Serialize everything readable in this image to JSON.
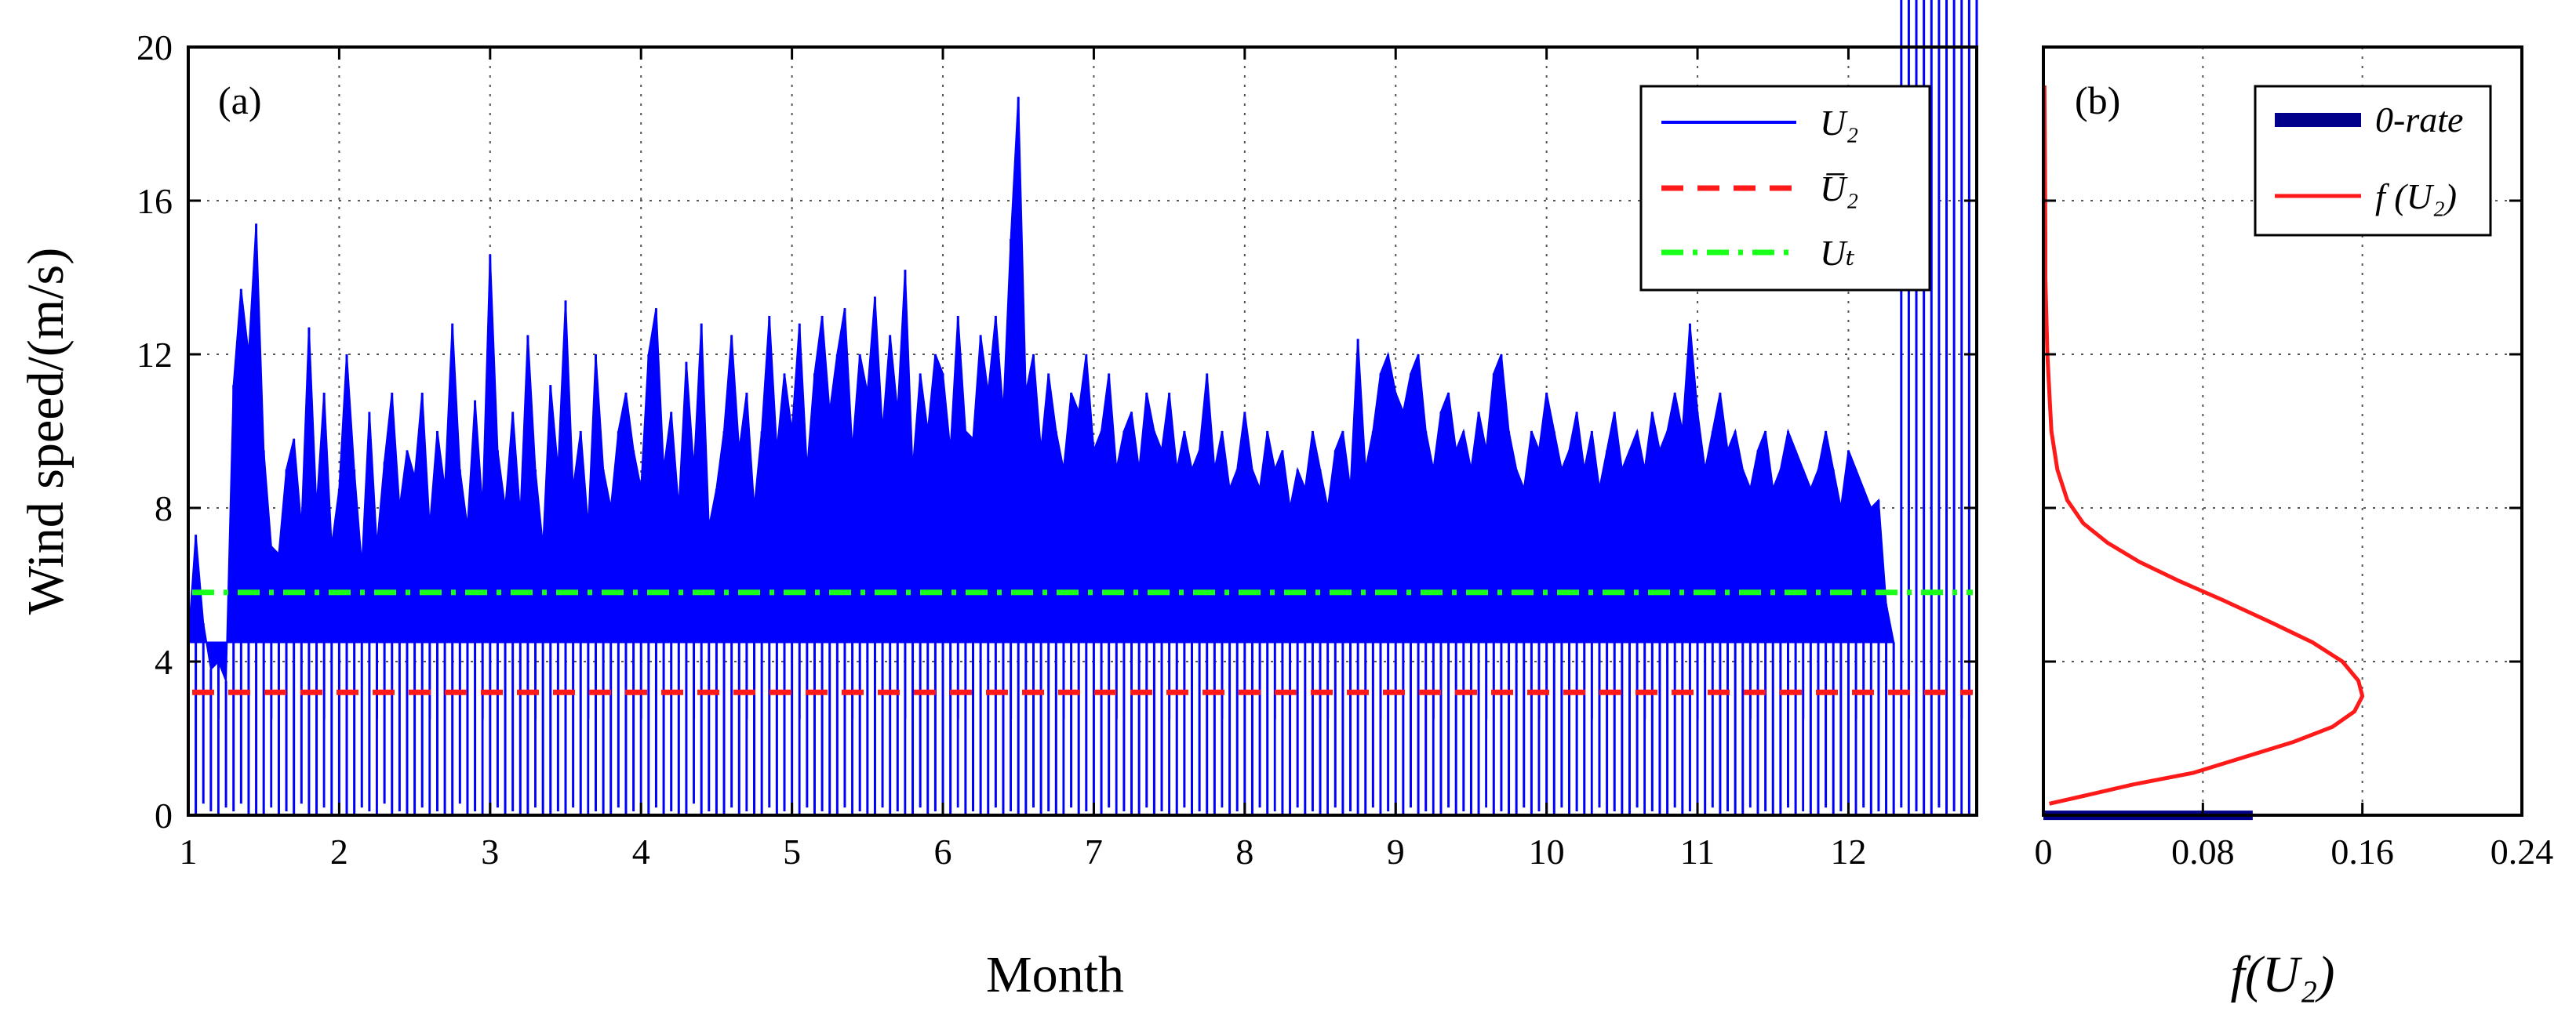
{
  "chart_data": [
    {
      "panel": "(a)",
      "type": "line",
      "xlabel": "Month",
      "ylabel": "Wind speed/(m/s)",
      "xlim": [
        1,
        12.85
      ],
      "ylim": [
        0,
        20
      ],
      "xticks": [
        "1",
        "2",
        "3",
        "4",
        "5",
        "6",
        "7",
        "8",
        "9",
        "10",
        "11",
        "12"
      ],
      "yticks": [
        "0",
        "4",
        "8",
        "12",
        "16",
        "20"
      ],
      "grid": true,
      "legend_position": "top-right",
      "series": [
        {
          "name": "U₂",
          "style": "solid",
          "color": "#0000ff",
          "x": [
            1.0,
            1.05,
            1.1,
            1.15,
            1.2,
            1.25,
            1.3,
            1.35,
            1.4,
            1.45,
            1.5,
            1.55,
            1.6,
            1.65,
            1.7,
            1.75,
            1.8,
            1.85,
            1.9,
            1.95,
            2.0,
            2.05,
            2.1,
            2.15,
            2.2,
            2.25,
            2.3,
            2.35,
            2.4,
            2.45,
            2.5,
            2.55,
            2.6,
            2.65,
            2.7,
            2.75,
            2.8,
            2.85,
            2.9,
            2.95,
            3.0,
            3.05,
            3.1,
            3.15,
            3.2,
            3.25,
            3.3,
            3.35,
            3.4,
            3.45,
            3.5,
            3.55,
            3.6,
            3.65,
            3.7,
            3.75,
            3.8,
            3.85,
            3.9,
            3.95,
            4.0,
            4.05,
            4.1,
            4.15,
            4.2,
            4.25,
            4.3,
            4.35,
            4.4,
            4.45,
            4.5,
            4.55,
            4.6,
            4.65,
            4.7,
            4.75,
            4.8,
            4.85,
            4.9,
            4.95,
            5.0,
            5.05,
            5.1,
            5.15,
            5.2,
            5.25,
            5.3,
            5.35,
            5.4,
            5.45,
            5.5,
            5.55,
            5.6,
            5.65,
            5.7,
            5.75,
            5.8,
            5.85,
            5.9,
            5.95,
            6.0,
            6.05,
            6.1,
            6.15,
            6.2,
            6.25,
            6.3,
            6.35,
            6.4,
            6.45,
            6.5,
            6.55,
            6.6,
            6.65,
            6.7,
            6.75,
            6.8,
            6.85,
            6.9,
            6.95,
            7.0,
            7.05,
            7.1,
            7.15,
            7.2,
            7.25,
            7.3,
            7.35,
            7.4,
            7.45,
            7.5,
            7.55,
            7.6,
            7.65,
            7.7,
            7.75,
            7.8,
            7.85,
            7.9,
            7.95,
            8.0,
            8.05,
            8.1,
            8.15,
            8.2,
            8.25,
            8.3,
            8.35,
            8.4,
            8.45,
            8.5,
            8.55,
            8.6,
            8.65,
            8.7,
            8.75,
            8.8,
            8.85,
            8.9,
            8.95,
            9.0,
            9.05,
            9.1,
            9.15,
            9.2,
            9.25,
            9.3,
            9.35,
            9.4,
            9.45,
            9.5,
            9.55,
            9.6,
            9.65,
            9.7,
            9.75,
            9.8,
            9.85,
            9.9,
            9.95,
            10.0,
            10.05,
            10.1,
            10.15,
            10.2,
            10.25,
            10.3,
            10.35,
            10.4,
            10.45,
            10.5,
            10.55,
            10.6,
            10.65,
            10.7,
            10.75,
            10.8,
            10.85,
            10.9,
            10.95,
            11.0,
            11.05,
            11.1,
            11.15,
            11.2,
            11.25,
            11.3,
            11.35,
            11.4,
            11.45,
            11.5,
            11.55,
            11.6,
            11.65,
            11.7,
            11.75,
            11.8,
            11.85,
            11.9,
            11.95,
            12.0,
            12.05,
            12.1,
            12.15,
            12.2,
            12.25,
            12.3,
            12.35,
            12.4,
            12.45,
            12.5,
            12.55,
            12.6,
            12.65,
            12.7,
            12.75,
            12.8,
            12.85
          ],
          "y_max": [
            4.5,
            7.3,
            5.0,
            3.8,
            4.0,
            3.5,
            11.2,
            13.7,
            12.0,
            15.4,
            9.5,
            7.0,
            6.8,
            9.0,
            9.8,
            7.5,
            12.7,
            8.0,
            11.0,
            7.0,
            8.5,
            12.0,
            9.0,
            6.5,
            10.5,
            7.0,
            9.2,
            11.0,
            8.0,
            9.5,
            8.8,
            11.0,
            7.5,
            10.0,
            8.5,
            12.8,
            9.0,
            7.5,
            10.8,
            8.0,
            14.6,
            9.5,
            8.0,
            10.5,
            7.8,
            12.5,
            9.0,
            7.0,
            11.2,
            9.0,
            13.4,
            8.5,
            10.0,
            7.5,
            12.0,
            9.0,
            8.0,
            10.0,
            11.0,
            9.5,
            8.5,
            12.0,
            13.2,
            9.0,
            10.5,
            8.0,
            11.8,
            9.0,
            12.8,
            7.5,
            8.5,
            10.0,
            12.5,
            9.5,
            11.0,
            8.0,
            10.0,
            13.0,
            9.5,
            11.5,
            10.0,
            12.8,
            9.0,
            11.5,
            13.0,
            10.5,
            12.0,
            13.2,
            9.5,
            12.0,
            11.0,
            13.5,
            10.0,
            12.5,
            10.5,
            14.2,
            9.0,
            11.5,
            10.0,
            12.0,
            11.5,
            9.5,
            13.0,
            10.0,
            9.8,
            12.5,
            11.0,
            13.0,
            10.5,
            15.0,
            18.7,
            11.0,
            12.0,
            9.5,
            11.5,
            10.0,
            9.0,
            11.0,
            10.5,
            12.0,
            9.5,
            10.0,
            11.5,
            9.0,
            10.0,
            10.5,
            9.0,
            11.0,
            10.0,
            9.5,
            11.0,
            9.0,
            10.0,
            9.0,
            9.5,
            11.5,
            9.0,
            10.0,
            8.5,
            9.0,
            10.5,
            9.0,
            8.5,
            10.0,
            9.0,
            9.5,
            8.0,
            9.0,
            8.5,
            10.0,
            9.0,
            8.0,
            9.5,
            10.0,
            8.5,
            12.4,
            9.0,
            10.0,
            11.5,
            12.0,
            11.0,
            10.5,
            11.5,
            12.0,
            10.0,
            9.0,
            10.5,
            11.0,
            9.5,
            10.0,
            9.0,
            10.5,
            9.5,
            11.5,
            12.0,
            10.0,
            9.0,
            8.5,
            10.0,
            9.5,
            11.0,
            10.0,
            9.0,
            9.5,
            10.5,
            9.0,
            10.0,
            8.5,
            9.5,
            10.5,
            9.0,
            9.5,
            10.0,
            9.0,
            10.5,
            9.5,
            10.0,
            11.0,
            10.0,
            12.8,
            10.5,
            9.0,
            10.0,
            11.0,
            9.5,
            10.0,
            9.0,
            8.5,
            9.5,
            10.0,
            8.5,
            9.0,
            10.0,
            9.5,
            9.0,
            8.5,
            9.0,
            10.0,
            9.0,
            8.0,
            9.5,
            9.0,
            8.5,
            8.0,
            8.2,
            5.5,
            4.5
          ],
          "y_min": [
            0.2,
            0.0,
            0.3,
            0.1,
            0.0,
            0.2,
            0.1,
            0.3,
            0.0,
            0.0,
            0.0,
            0.2,
            0.0,
            0.1,
            0.0,
            0.3,
            0.0,
            0.0,
            0.2,
            0.0,
            0.1,
            0.0,
            0.0,
            0.2,
            0.1,
            0.0,
            0.3,
            0.0,
            0.1,
            0.0,
            0.0,
            0.2,
            0.0,
            0.1,
            0.0,
            0.0,
            0.3,
            0.0,
            0.1,
            0.0,
            0.0,
            0.2,
            0.0,
            0.1,
            0.0,
            0.0,
            0.2,
            0.0,
            0.0,
            0.1,
            0.0,
            0.2,
            0.0,
            0.0,
            0.1,
            0.0,
            0.0,
            0.2,
            0.0,
            0.1,
            0.0,
            0.0,
            0.2,
            0.0,
            0.1,
            0.0,
            0.0,
            0.3,
            0.0,
            0.1,
            0.0,
            0.0,
            0.2,
            0.0,
            0.1,
            0.0,
            0.0,
            0.2,
            0.0,
            0.1,
            0.0,
            0.0,
            0.2,
            0.0,
            0.1,
            0.0,
            0.0,
            0.2,
            0.0,
            0.1,
            0.0,
            0.0,
            0.2,
            0.0,
            0.1,
            0.0,
            0.0,
            0.2,
            0.0,
            0.1,
            0.0,
            0.0,
            0.2,
            0.0,
            0.1,
            0.0,
            0.0,
            0.2,
            0.0,
            0.1,
            0.0,
            0.0,
            0.2,
            0.0,
            0.1,
            0.0,
            0.0,
            0.2,
            0.0,
            0.1,
            0.0,
            0.0,
            0.2,
            0.0,
            0.1,
            0.0,
            0.0,
            0.2,
            0.0,
            0.1,
            0.0,
            0.0,
            0.2,
            0.0,
            0.1,
            0.0,
            0.0,
            0.2,
            0.0,
            0.1,
            0.0,
            0.0,
            0.2,
            0.0,
            0.1,
            0.0,
            0.0,
            0.2,
            0.0,
            0.1,
            0.0,
            0.0,
            0.2,
            0.0,
            0.1,
            0.0,
            0.0,
            0.2,
            0.0,
            0.1,
            0.0,
            0.0,
            0.2,
            0.0,
            0.1,
            0.0,
            0.0,
            0.2,
            0.0,
            0.1,
            0.0,
            0.0,
            0.2,
            0.0,
            0.1,
            0.0,
            0.0,
            0.2,
            0.0,
            0.1,
            0.0,
            0.0,
            0.2,
            0.0,
            0.1,
            0.0,
            0.0,
            0.2,
            0.0,
            0.1,
            0.0,
            0.0,
            0.2,
            0.0,
            0.1,
            0.0,
            0.0,
            0.2,
            0.0,
            0.1,
            0.0,
            0.0,
            0.2,
            0.0,
            0.1,
            0.0,
            0.0,
            0.2,
            0.0,
            0.1,
            0.0,
            0.0,
            0.2,
            0.0,
            0.1,
            0.0,
            0.0,
            0.2,
            0.0,
            0.1,
            0.0,
            0.0,
            0.2,
            0.0,
            0.1,
            0.0,
            0.0,
            0.2,
            0.0,
            0.1,
            0.0,
            0.0,
            0.2,
            0.0,
            0.1,
            0.0,
            0.0,
            0.2,
            0.0
          ]
        },
        {
          "name": "U̅₂",
          "style": "dashed",
          "color": "#ff1a1a",
          "value": 3.2
        },
        {
          "name": "Uₜ",
          "style": "dash-dot",
          "color": "#1aff1a",
          "value": 5.8
        }
      ]
    },
    {
      "panel": "(b)",
      "type": "line",
      "xlabel": "f(U₂)",
      "ylabel": "",
      "xlim": [
        0,
        0.24
      ],
      "ylim": [
        0,
        20
      ],
      "xticks": [
        "0",
        "0.08",
        "0.16",
        "0.24"
      ],
      "grid": true,
      "legend_position": "top-right",
      "series": [
        {
          "name": "0-rate",
          "style": "bar",
          "color": "#00008b",
          "value": 0.105,
          "y_range": [
            0.0,
            0.12
          ]
        },
        {
          "name": "f (U₂)",
          "style": "solid",
          "color": "#ff1a1a",
          "x": [
            0.003,
            0.02,
            0.045,
            0.075,
            0.1,
            0.125,
            0.145,
            0.156,
            0.16,
            0.158,
            0.15,
            0.135,
            0.115,
            0.09,
            0.068,
            0.048,
            0.032,
            0.02,
            0.012,
            0.007,
            0.004,
            0.003,
            0.002,
            0.0015,
            0.001,
            0.001,
            0.0008,
            0.0005
          ],
          "y": [
            0.3,
            0.5,
            0.8,
            1.1,
            1.5,
            1.9,
            2.3,
            2.7,
            3.1,
            3.5,
            4.0,
            4.5,
            5.0,
            5.6,
            6.1,
            6.6,
            7.1,
            7.6,
            8.2,
            9.0,
            10.0,
            11.0,
            12.0,
            13.0,
            14.0,
            15.0,
            17.0,
            19.0
          ]
        }
      ]
    }
  ]
}
